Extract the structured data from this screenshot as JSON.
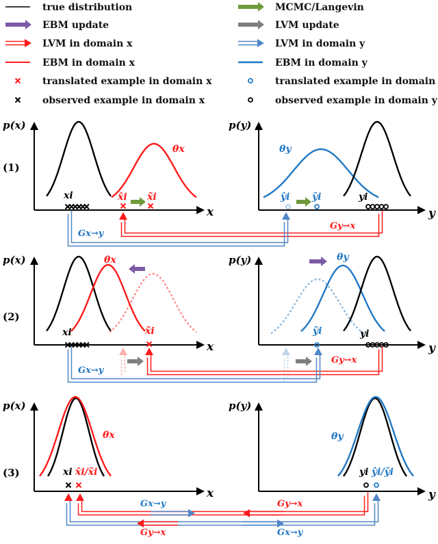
{
  "legend": {
    "true_distribution": "true distribution",
    "mcmc": "MCMC/Langevin",
    "ebm_update": "EBM update",
    "lvm_update": "LVM update",
    "lvm_x": "LVM in domain x",
    "lvm_y": "LVM in domain y",
    "ebm_x": "EBM in domain x",
    "ebm_y": "EBM in domain y",
    "translated_x": "translated example in domain x",
    "translated_y": "translated example in domain y",
    "observed_x": "observed example in domain x",
    "observed_y": "observed example in domain y"
  },
  "labels": {
    "px": "p(x)",
    "py": "p(y)",
    "x": "x",
    "y": "y",
    "theta_x": "θx",
    "theta_y": "θy",
    "xi": "xi",
    "yi": "yi",
    "x_hat": "x̂i",
    "x_tilde": "x̃i",
    "y_hat": "ŷi",
    "y_tilde": "ỹi",
    "x_hat_tilde": "x̂i/x̃i",
    "y_hat_tilde": "ŷi/ỹi",
    "g_xy": "Gx→y",
    "g_yx": "Gy→x"
  },
  "steps": [
    "(1)",
    "(2)",
    "(3)"
  ],
  "colors": {
    "red": "#ff1a1a",
    "blue": "#1f77c4",
    "lightblue": "#4f86c6",
    "green": "#6f9a3c",
    "purple": "#7b5aa6",
    "gray": "#7f7f7f",
    "black": "#000000"
  }
}
